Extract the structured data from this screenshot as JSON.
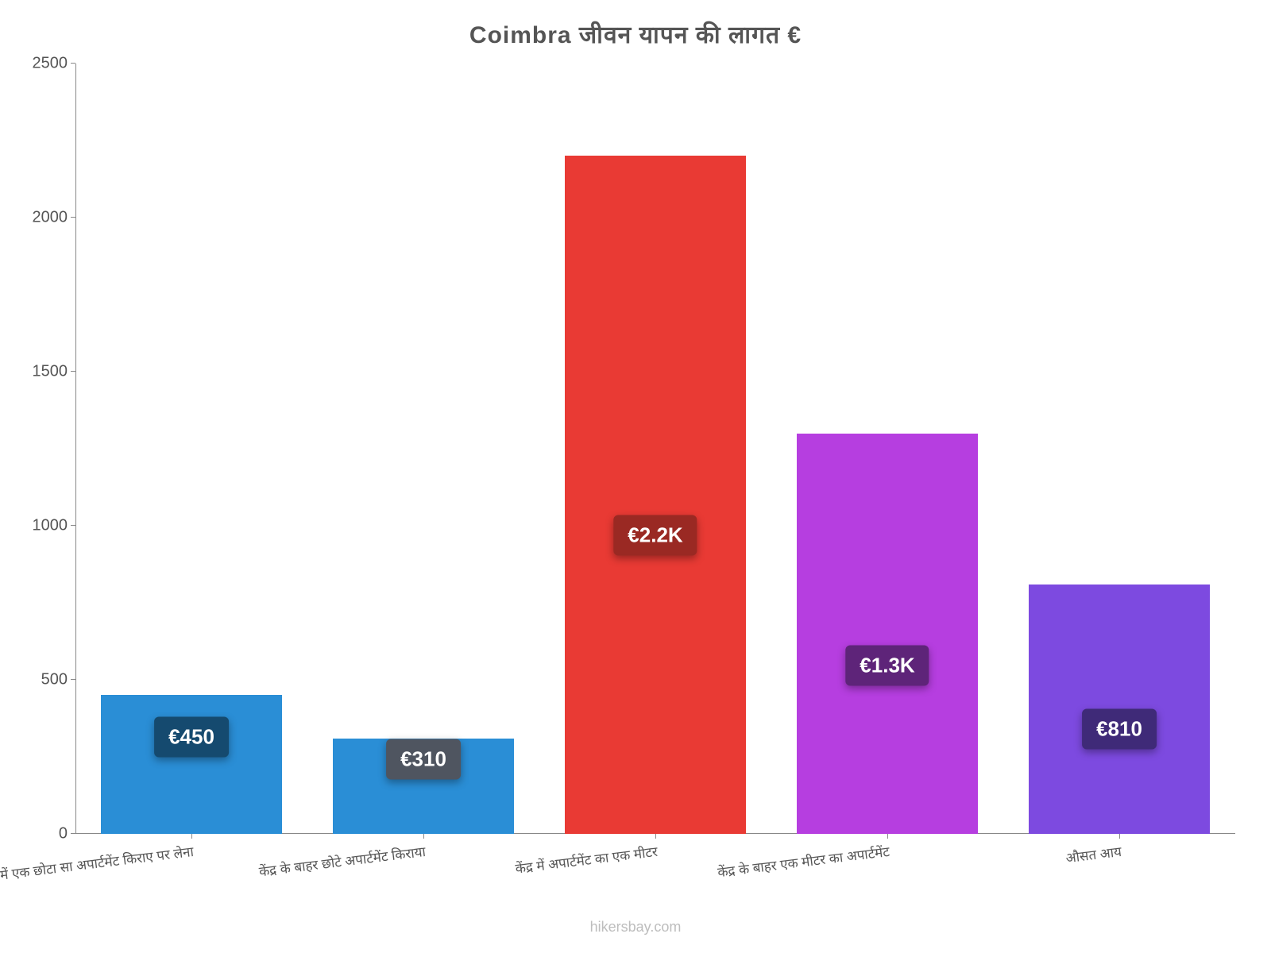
{
  "chart": {
    "type": "bar",
    "title": "Coimbra जीवन    यापन    की    लागत    €",
    "title_fontsize": 30,
    "title_color": "#555555",
    "background_color": "#ffffff",
    "axis_color": "#888888",
    "label_color": "#555555",
    "xtick_fontsize": 17,
    "ytick_fontsize": 20,
    "xtick_rotation_deg": -7,
    "ylim": [
      0,
      2500
    ],
    "ytick_step": 500,
    "yticks": [
      0,
      500,
      1000,
      1500,
      2000,
      2500
    ],
    "bar_width_ratio": 0.78,
    "value_label_fontsize": 26,
    "categories": [
      "केंद्र में एक छोटा सा अपार्टमेंट किराए पर लेना",
      "केंद्र के बाहर छोटे अपार्टमेंट किराया",
      "केंद्र में अपार्टमेंट का एक मीटर",
      "केंद्र के बाहर एक मीटर का अपार्टमेंट",
      "औसत आय"
    ],
    "values": [
      450,
      310,
      2200,
      1300,
      810
    ],
    "value_labels": [
      "€450",
      "€310",
      "€2.2K",
      "€1.3K",
      "€810"
    ],
    "bar_colors": [
      "#2a8ed6",
      "#2a8ed6",
      "#e93a34",
      "#b63ee0",
      "#7d4ae0"
    ],
    "label_bg_colors": [
      "#154a6f",
      "#4f5560",
      "#9a2923",
      "#5e2479",
      "#3f2a78"
    ],
    "label_vertical_offset_pct": [
      30,
      22,
      56,
      58,
      58
    ]
  },
  "watermark": "hikersbay.com"
}
